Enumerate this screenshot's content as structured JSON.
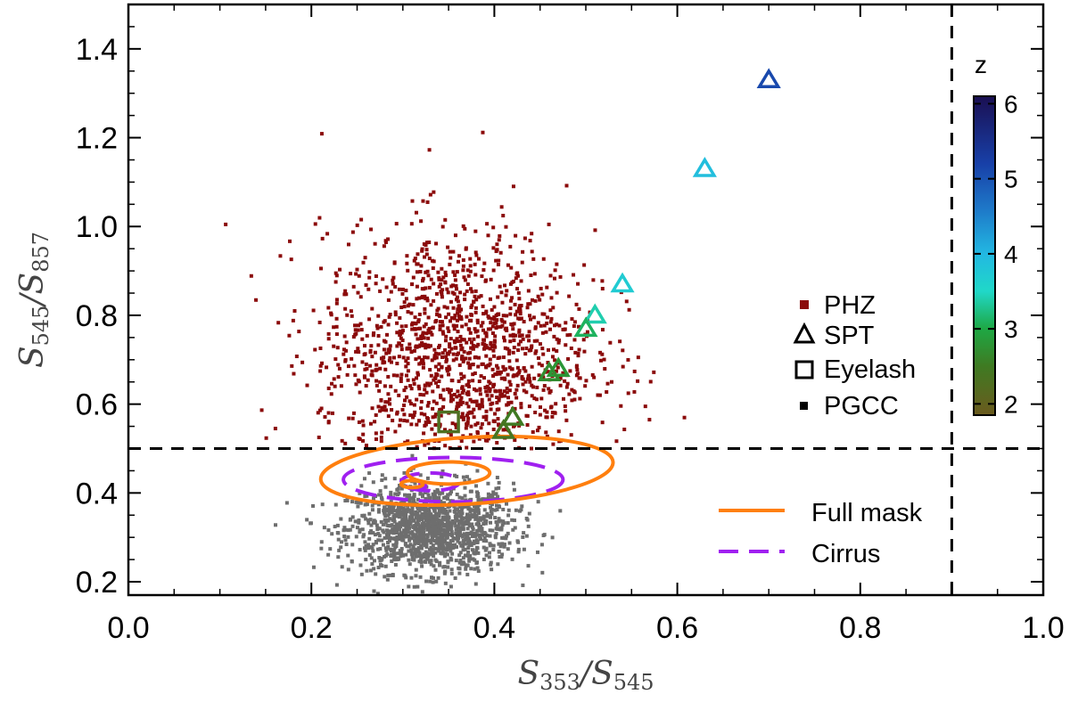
{
  "chart_data": {
    "type": "scatter",
    "xlabel": {
      "main1": "S",
      "sub1": "353",
      "sep": "/",
      "main2": "S",
      "sub2": "545"
    },
    "ylabel": {
      "main1": "S",
      "sub1": "545",
      "sep": "/",
      "main2": "S",
      "sub2": "857"
    },
    "xlim": [
      0.0,
      1.0
    ],
    "ylim": [
      0.17,
      1.5
    ],
    "xticks": [
      0.0,
      0.2,
      0.4,
      0.6,
      0.8,
      1.0
    ],
    "xtick_labels": [
      "0.0",
      "0.2",
      "0.4",
      "0.6",
      "0.8",
      "1.0"
    ],
    "yticks": [
      0.2,
      0.4,
      0.6,
      0.8,
      1.0,
      1.2,
      1.4
    ],
    "ytick_labels": [
      "0.2",
      "0.4",
      "0.6",
      "0.8",
      "1.0",
      "1.2",
      "1.4"
    ],
    "threshold_lines": {
      "y": 0.5,
      "x": 0.9
    },
    "phz_cloud": {
      "center": [
        0.36,
        0.71
      ],
      "spread": [
        0.075,
        0.14
      ],
      "count": 1500,
      "color": "#8b0a0a"
    },
    "pgcc_cloud": {
      "center": [
        0.33,
        0.32
      ],
      "spread": [
        0.045,
        0.05
      ],
      "count": 1400,
      "color": "#6e6e6e"
    },
    "spt": [
      {
        "x": 0.7,
        "y": 1.33,
        "z": 5.1
      },
      {
        "x": 0.63,
        "y": 1.13,
        "z": 3.9
      },
      {
        "x": 0.54,
        "y": 0.87,
        "z": 3.7
      },
      {
        "x": 0.51,
        "y": 0.8,
        "z": 3.4
      },
      {
        "x": 0.5,
        "y": 0.77,
        "z": 3.1
      },
      {
        "x": 0.47,
        "y": 0.68,
        "z": 2.8
      },
      {
        "x": 0.46,
        "y": 0.67,
        "z": 2.7
      },
      {
        "x": 0.42,
        "y": 0.57,
        "z": 2.5
      },
      {
        "x": 0.41,
        "y": 0.54,
        "z": 2.4
      }
    ],
    "eyelash": [
      {
        "x": 0.35,
        "y": 0.56,
        "z": 2.3
      }
    ],
    "contours": {
      "full_mask": [
        {
          "cx": 0.37,
          "cy": 0.45,
          "rx": 0.16,
          "ry": 0.075,
          "rot": 0.06
        },
        {
          "cx": 0.35,
          "cy": 0.445,
          "rx": 0.045,
          "ry": 0.025,
          "rot": 0.0
        },
        {
          "cx": 0.31,
          "cy": 0.42,
          "rx": 0.012,
          "ry": 0.008,
          "rot": 0.0
        }
      ],
      "cirrus": [
        {
          "cx": 0.355,
          "cy": 0.43,
          "rx": 0.12,
          "ry": 0.05,
          "rot": 0.0
        },
        {
          "cx": 0.33,
          "cy": 0.425,
          "rx": 0.032,
          "ry": 0.02,
          "rot": 0.0
        },
        {
          "cx": 0.315,
          "cy": 0.415,
          "rx": 0.01,
          "ry": 0.007,
          "rot": 0.0
        }
      ]
    },
    "colorbar": {
      "title": "z",
      "range": [
        1.85,
        6.1
      ],
      "ticks": [
        2,
        3,
        4,
        5,
        6
      ],
      "tick_labels": [
        "2",
        "3",
        "4",
        "5",
        "6"
      ],
      "stops": [
        {
          "z": 1.85,
          "color": "#6b5a1e"
        },
        {
          "z": 2.5,
          "color": "#3f7a22"
        },
        {
          "z": 3.0,
          "color": "#1ea844"
        },
        {
          "z": 3.5,
          "color": "#20d8c8"
        },
        {
          "z": 4.0,
          "color": "#22b8e2"
        },
        {
          "z": 4.6,
          "color": "#1e78c8"
        },
        {
          "z": 5.2,
          "color": "#1840a8"
        },
        {
          "z": 6.1,
          "color": "#1a0f52"
        }
      ]
    },
    "legend": {
      "markers": [
        "PHZ",
        "SPT",
        "Eyelash",
        "PGCC"
      ],
      "lines": [
        "Full mask",
        "Cirrus"
      ]
    },
    "colors": {
      "phz": "#8b0a0a",
      "pgcc": "#000000",
      "full_mask": "#ff7f0e",
      "cirrus": "#a020f0"
    }
  }
}
